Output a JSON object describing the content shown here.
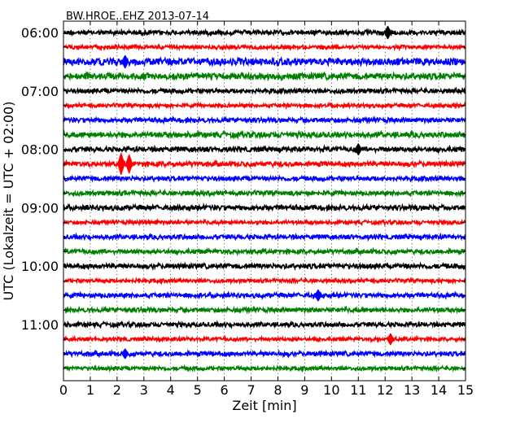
{
  "chart_data": {
    "type": "line",
    "title": "BW.HROE..EHZ 2013-07-14",
    "xlabel": "Zeit  [min]",
    "ylabel": "UTC (Lokalzeit = UTC + 02:00)",
    "xlim": [
      0,
      15
    ],
    "x_ticks": [
      "0",
      "1",
      "2",
      "3",
      "4",
      "5",
      "6",
      "7",
      "8",
      "9",
      "10",
      "11",
      "12",
      "13",
      "14",
      "15"
    ],
    "y_tick_labels": [
      "06:00",
      "07:00",
      "08:00",
      "09:00",
      "10:00",
      "11:00"
    ],
    "grid_x": "dotted",
    "trace_colors": [
      "#000000",
      "#ff0000",
      "#0000ff",
      "#008000"
    ],
    "traces": [
      {
        "start": "06:00",
        "color": "#000000",
        "amplitude": 0.18,
        "events": [
          {
            "x": 12.1,
            "amp": 0.45
          }
        ]
      },
      {
        "start": "06:15",
        "color": "#ff0000",
        "amplitude": 0.15,
        "events": []
      },
      {
        "start": "06:30",
        "color": "#0000ff",
        "amplitude": 0.28,
        "events": [
          {
            "x": 2.3,
            "amp": 0.45
          }
        ]
      },
      {
        "start": "06:45",
        "color": "#008000",
        "amplitude": 0.25,
        "events": []
      },
      {
        "start": "07:00",
        "color": "#000000",
        "amplitude": 0.18,
        "events": []
      },
      {
        "start": "07:15",
        "color": "#ff0000",
        "amplitude": 0.15,
        "events": []
      },
      {
        "start": "07:30",
        "color": "#0000ff",
        "amplitude": 0.18,
        "events": []
      },
      {
        "start": "07:45",
        "color": "#008000",
        "amplitude": 0.22,
        "events": []
      },
      {
        "start": "08:00",
        "color": "#000000",
        "amplitude": 0.2,
        "events": [
          {
            "x": 11.0,
            "amp": 0.4
          }
        ]
      },
      {
        "start": "08:15",
        "color": "#ff0000",
        "amplitude": 0.2,
        "events": [
          {
            "x": 2.15,
            "amp": 0.75
          },
          {
            "x": 2.45,
            "amp": 0.65
          }
        ]
      },
      {
        "start": "08:30",
        "color": "#0000ff",
        "amplitude": 0.18,
        "events": []
      },
      {
        "start": "08:45",
        "color": "#008000",
        "amplitude": 0.18,
        "events": []
      },
      {
        "start": "09:00",
        "color": "#000000",
        "amplitude": 0.2,
        "events": []
      },
      {
        "start": "09:15",
        "color": "#ff0000",
        "amplitude": 0.15,
        "events": []
      },
      {
        "start": "09:30",
        "color": "#0000ff",
        "amplitude": 0.18,
        "events": []
      },
      {
        "start": "09:45",
        "color": "#008000",
        "amplitude": 0.18,
        "events": []
      },
      {
        "start": "10:00",
        "color": "#000000",
        "amplitude": 0.2,
        "events": []
      },
      {
        "start": "10:15",
        "color": "#ff0000",
        "amplitude": 0.15,
        "events": []
      },
      {
        "start": "10:30",
        "color": "#0000ff",
        "amplitude": 0.18,
        "events": [
          {
            "x": 9.5,
            "amp": 0.4
          }
        ]
      },
      {
        "start": "10:45",
        "color": "#008000",
        "amplitude": 0.18,
        "events": []
      },
      {
        "start": "11:00",
        "color": "#000000",
        "amplitude": 0.18,
        "events": []
      },
      {
        "start": "11:15",
        "color": "#ff0000",
        "amplitude": 0.15,
        "events": [
          {
            "x": 12.2,
            "amp": 0.4
          }
        ]
      },
      {
        "start": "11:30",
        "color": "#0000ff",
        "amplitude": 0.18,
        "events": [
          {
            "x": 2.3,
            "amp": 0.35
          }
        ]
      },
      {
        "start": "11:45",
        "color": "#008000",
        "amplitude": 0.15,
        "events": []
      }
    ]
  }
}
